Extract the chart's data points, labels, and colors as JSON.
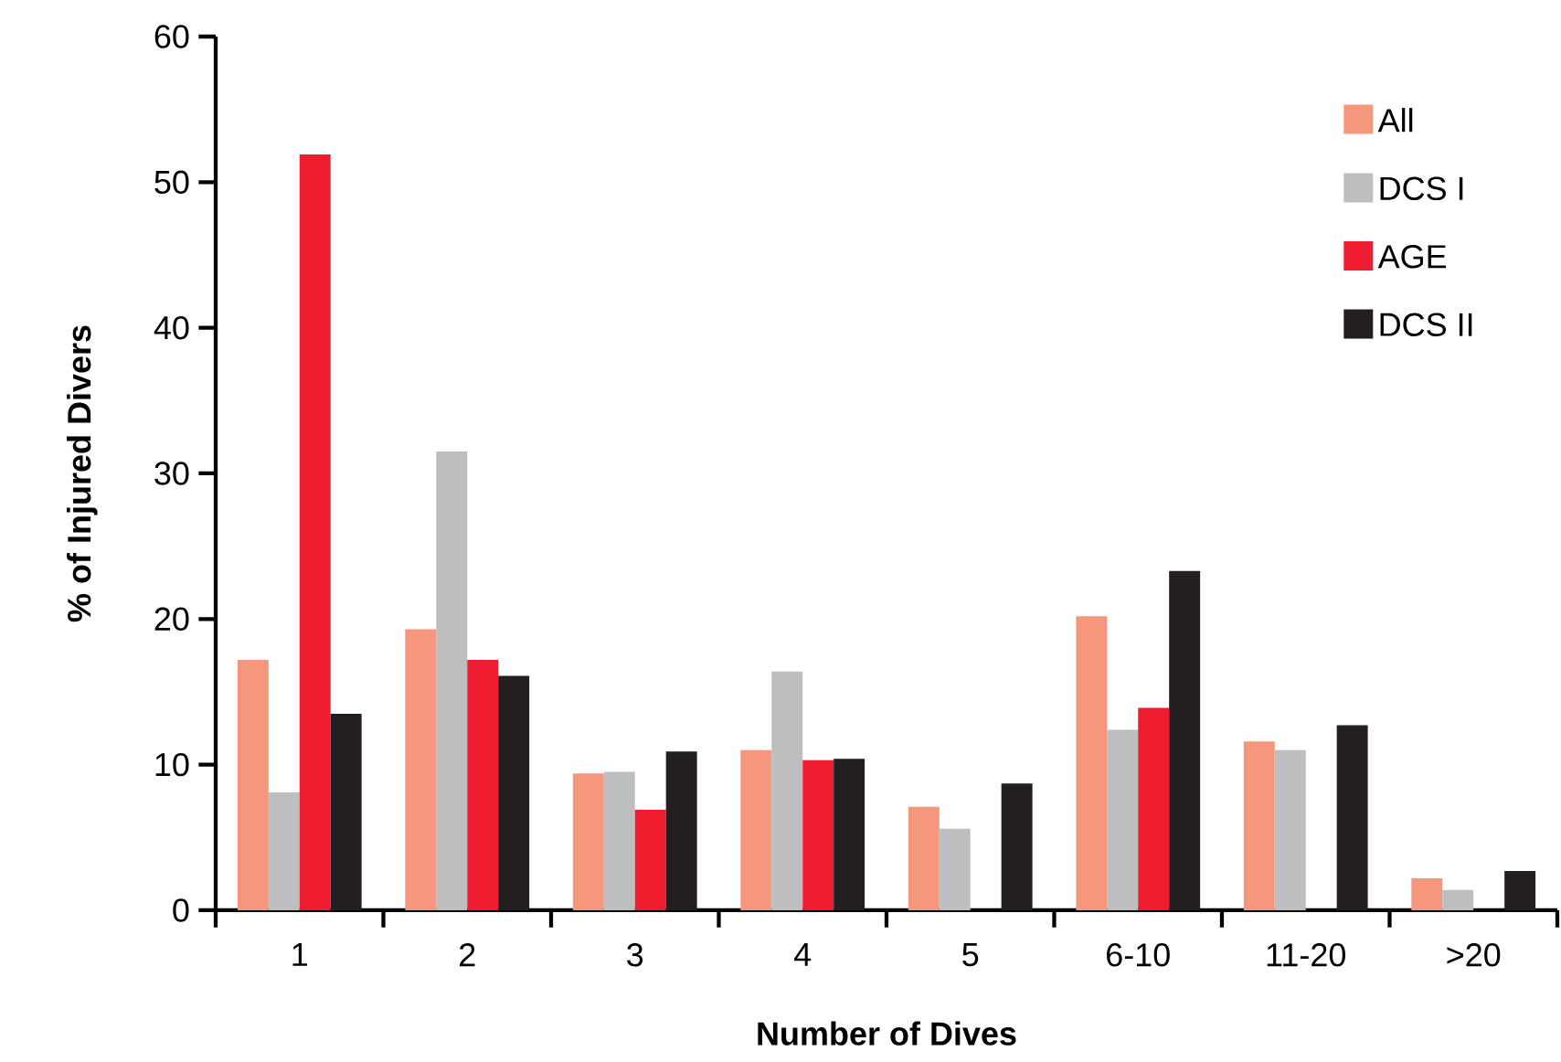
{
  "chart_data": {
    "type": "bar",
    "xlabel": "Number of Dives",
    "ylabel": "% of Injured Divers",
    "categories": [
      "1",
      "2",
      "3",
      "4",
      "5",
      "6-10",
      "11-20",
      ">20"
    ],
    "series": [
      {
        "name": "All",
        "color": "#f4977d",
        "values": [
          17.2,
          19.3,
          9.4,
          11.0,
          7.1,
          20.2,
          11.6,
          2.2
        ]
      },
      {
        "name": "DCS I",
        "color": "#bdbec0",
        "values": [
          8.1,
          31.5,
          9.5,
          16.4,
          5.6,
          12.4,
          11.0,
          1.4
        ]
      },
      {
        "name": "AGE",
        "color": "#ee1c2f",
        "values": [
          51.9,
          17.2,
          6.9,
          10.3,
          null,
          13.9,
          null,
          null
        ]
      },
      {
        "name": "DCS II",
        "color": "#231f20",
        "values": [
          13.5,
          16.1,
          10.9,
          10.4,
          8.7,
          23.3,
          12.7,
          2.7
        ]
      }
    ],
    "ylim": [
      0,
      60
    ],
    "yticks": [
      0,
      10,
      20,
      30,
      40,
      50,
      60
    ],
    "grid": false,
    "legend": "top right"
  }
}
